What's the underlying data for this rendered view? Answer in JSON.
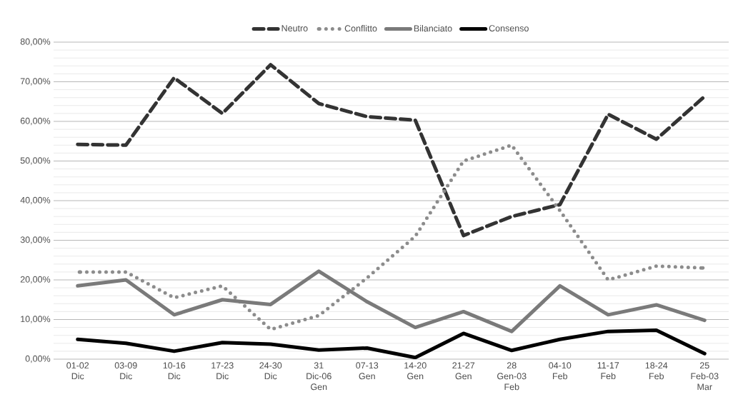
{
  "chart_data": {
    "type": "line",
    "categories": [
      "01-02 Dic",
      "03-09 Dic",
      "10-16 Dic",
      "17-23 Dic",
      "24-30 Dic",
      "31 Dic-06 Gen",
      "07-13 Gen",
      "14-20 Gen",
      "21-27 Gen",
      "28 Gen-03 Feb",
      "04-10 Feb",
      "11-17 Feb",
      "18-24 Feb",
      "25 Feb-03 Mar"
    ],
    "series": [
      {
        "name": "Neutro",
        "color": "#333333",
        "line_style": "dashed",
        "values": [
          54.2,
          54.0,
          71.0,
          62.0,
          74.3,
          64.5,
          61.2,
          60.3,
          31.2,
          36.0,
          39.0,
          61.8,
          55.5,
          66.3
        ]
      },
      {
        "name": "Conflitto",
        "color": "#8c8c8c",
        "line_style": "dotted",
        "values": [
          22.0,
          22.0,
          15.5,
          18.5,
          7.5,
          11.0,
          20.5,
          31.0,
          50.0,
          54.0,
          37.5,
          20.0,
          23.5,
          23.0
        ]
      },
      {
        "name": "Bilanciato",
        "color": "#7a7a7a",
        "line_style": "solid",
        "values": [
          18.5,
          20.0,
          11.2,
          15.0,
          13.8,
          22.2,
          14.5,
          8.0,
          12.0,
          7.0,
          18.5,
          11.2,
          13.7,
          9.8
        ]
      },
      {
        "name": "Consenso",
        "color": "#000000",
        "line_style": "solid",
        "values": [
          5.0,
          4.0,
          2.0,
          4.2,
          3.8,
          2.3,
          2.8,
          0.4,
          6.5,
          2.2,
          5.0,
          7.0,
          7.3,
          1.4
        ]
      }
    ],
    "ylim": [
      0,
      80
    ],
    "yticks": [
      {
        "value": 0,
        "label": "0,00%"
      },
      {
        "value": 2,
        "label": null
      },
      {
        "value": 4,
        "label": null
      },
      {
        "value": 6,
        "label": null
      },
      {
        "value": 8,
        "label": null
      },
      {
        "value": 10,
        "label": "10,00%"
      },
      {
        "value": 12,
        "label": null
      },
      {
        "value": 14,
        "label": null
      },
      {
        "value": 16,
        "label": null
      },
      {
        "value": 18,
        "label": null
      },
      {
        "value": 20,
        "label": "20,00%"
      },
      {
        "value": 22,
        "label": null
      },
      {
        "value": 24,
        "label": null
      },
      {
        "value": 26,
        "label": null
      },
      {
        "value": 28,
        "label": null
      },
      {
        "value": 30,
        "label": "30,00%"
      },
      {
        "value": 32,
        "label": null
      },
      {
        "value": 34,
        "label": null
      },
      {
        "value": 36,
        "label": null
      },
      {
        "value": 38,
        "label": null
      },
      {
        "value": 40,
        "label": "40,00%"
      },
      {
        "value": 42,
        "label": null
      },
      {
        "value": 44,
        "label": null
      },
      {
        "value": 46,
        "label": null
      },
      {
        "value": 48,
        "label": null
      },
      {
        "value": 50,
        "label": "50,00%"
      },
      {
        "value": 52,
        "label": null
      },
      {
        "value": 54,
        "label": null
      },
      {
        "value": 56,
        "label": null
      },
      {
        "value": 58,
        "label": null
      },
      {
        "value": 60,
        "label": "60,00%"
      },
      {
        "value": 62,
        "label": null
      },
      {
        "value": 64,
        "label": null
      },
      {
        "value": 66,
        "label": null
      },
      {
        "value": 68,
        "label": null
      },
      {
        "value": 70,
        "label": "70,00%"
      },
      {
        "value": 72,
        "label": null
      },
      {
        "value": 74,
        "label": null
      },
      {
        "value": 76,
        "label": null
      },
      {
        "value": 78,
        "label": null
      },
      {
        "value": 80,
        "label": "80,00%"
      }
    ],
    "grid": "y",
    "legend": "top",
    "marker": "none"
  }
}
